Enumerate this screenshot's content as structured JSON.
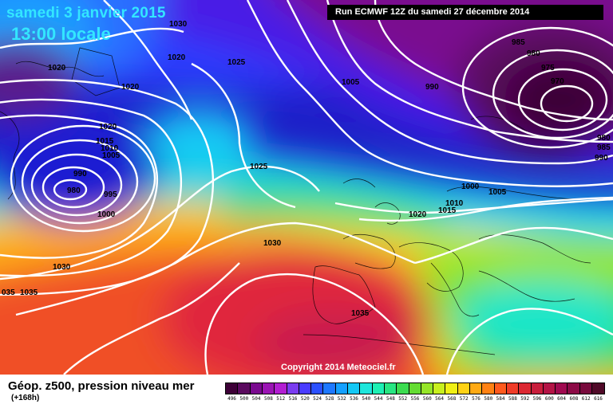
{
  "header": {
    "date": "samedi 3 janvier 2015",
    "time": "13:00 locale",
    "run": "Run ECMWF 12Z du samedi 27 décembre 2014"
  },
  "footer": {
    "parameter": "Géop. z500, pression niveau mer",
    "lead_time": "(+168h)",
    "copyright": "Copyright 2014 Meteociel.fr"
  },
  "isobars": [
    {
      "id": "i0",
      "text": "1030"
    },
    {
      "id": "i1",
      "text": "1020"
    },
    {
      "id": "i2",
      "text": "1025"
    },
    {
      "id": "i3",
      "text": "1020"
    },
    {
      "id": "i4",
      "text": "1020"
    },
    {
      "id": "i5",
      "text": "1020"
    },
    {
      "id": "i6",
      "text": "1015"
    },
    {
      "id": "i7",
      "text": "1010"
    },
    {
      "id": "i8",
      "text": "1005"
    },
    {
      "id": "i9",
      "text": "990"
    },
    {
      "id": "i10",
      "text": "980"
    },
    {
      "id": "i11",
      "text": "995"
    },
    {
      "id": "i12",
      "text": "1000"
    },
    {
      "id": "i13",
      "text": "1025"
    },
    {
      "id": "i14",
      "text": "1030"
    },
    {
      "id": "i15",
      "text": "1030"
    },
    {
      "id": "i16",
      "text": "035"
    },
    {
      "id": "i17",
      "text": "1035"
    },
    {
      "id": "i18",
      "text": "1035"
    },
    {
      "id": "i19",
      "text": "1005"
    },
    {
      "id": "i20",
      "text": "990"
    },
    {
      "id": "i21",
      "text": "985"
    },
    {
      "id": "i22",
      "text": "980"
    },
    {
      "id": "i23",
      "text": "975"
    },
    {
      "id": "i24",
      "text": "970"
    },
    {
      "id": "i25",
      "text": "980"
    },
    {
      "id": "i26",
      "text": "985"
    },
    {
      "id": "i27",
      "text": "990"
    },
    {
      "id": "i28",
      "text": "1000"
    },
    {
      "id": "i29",
      "text": "1005"
    },
    {
      "id": "i30",
      "text": "1010"
    },
    {
      "id": "i31",
      "text": "1015"
    },
    {
      "id": "i32",
      "text": "1020"
    }
  ],
  "legend": {
    "values": [
      "496",
      "500",
      "504",
      "508",
      "512",
      "516",
      "520",
      "524",
      "528",
      "532",
      "536",
      "540",
      "544",
      "548",
      "552",
      "556",
      "560",
      "564",
      "568",
      "572",
      "576",
      "580",
      "584",
      "588",
      "592",
      "596",
      "600",
      "604",
      "608",
      "612",
      "616"
    ],
    "colors": [
      "#3d0037",
      "#5a0a5e",
      "#7a0a8f",
      "#9b14b4",
      "#b21ed2",
      "#7a3cf0",
      "#4a3cff",
      "#2b50ff",
      "#1e78ff",
      "#14a0ff",
      "#14c8f5",
      "#1ee6dc",
      "#1ef0b4",
      "#28e682",
      "#3cdc50",
      "#64dc32",
      "#96e628",
      "#c8f01e",
      "#f0f014",
      "#ffd214",
      "#ffaa14",
      "#ff8214",
      "#ff5a1e",
      "#f03c28",
      "#dc2832",
      "#c81e3c",
      "#b41446",
      "#a00a50",
      "#8c0a46",
      "#780a3c",
      "#500a28"
    ]
  }
}
